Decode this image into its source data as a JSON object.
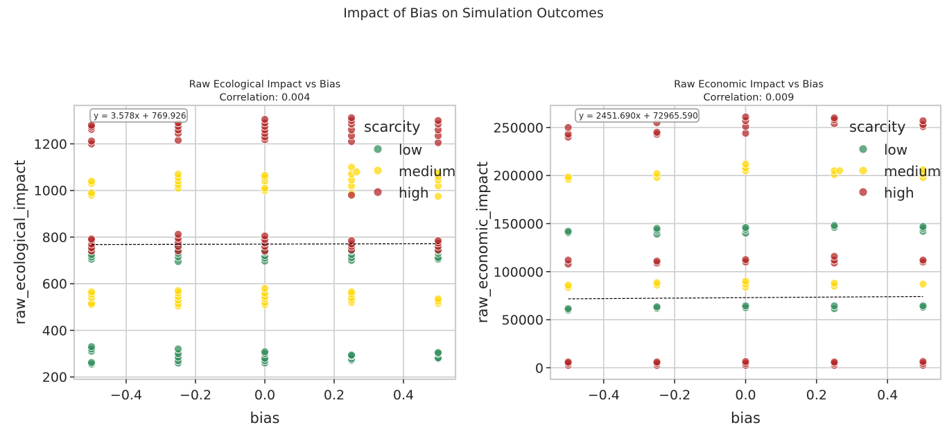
{
  "suptitle": "Impact of Bias on Simulation Outcomes",
  "colors": {
    "low": "#2e8b57",
    "medium": "#ffd700",
    "high": "#b22222",
    "grid": "#cccccc",
    "fit": "#000000"
  },
  "chart_data": [
    {
      "type": "scatter",
      "title": "Raw Ecological Impact vs Bias",
      "subtitle": "Correlation: 0.004",
      "xlabel": "bias",
      "ylabel": "raw_ecological_impact",
      "xlim": [
        -0.55,
        0.55
      ],
      "ylim": [
        190,
        1365
      ],
      "xticks": [
        -0.4,
        -0.2,
        0.0,
        0.2,
        0.4
      ],
      "xtick_labels": [
        "−0.4",
        "−0.2",
        "0.0",
        "0.2",
        "0.4"
      ],
      "yticks": [
        200,
        400,
        600,
        800,
        1000,
        1200
      ],
      "ytick_labels": [
        "200",
        "400",
        "600",
        "800",
        "1000",
        "1200"
      ],
      "grid": true,
      "legend": {
        "title": "scarcity",
        "placement": "top-right",
        "entries": [
          "low",
          "medium",
          "high"
        ]
      },
      "fit": {
        "label": "y = 3.578x + 769.926",
        "slope": 3.578,
        "intercept": 769.926,
        "x_range": [
          -0.5,
          0.5
        ]
      },
      "series": [
        {
          "name": "low",
          "points": [
            [
              -0.5,
              255
            ],
            [
              -0.5,
              262
            ],
            [
              -0.5,
              310
            ],
            [
              -0.5,
              320
            ],
            [
              -0.5,
              330
            ],
            [
              -0.5,
              705
            ],
            [
              -0.5,
              715
            ],
            [
              -0.5,
              725
            ],
            [
              -0.5,
              740
            ],
            [
              -0.5,
              750
            ],
            [
              -0.25,
              260
            ],
            [
              -0.25,
              270
            ],
            [
              -0.25,
              285
            ],
            [
              -0.25,
              300
            ],
            [
              -0.25,
              320
            ],
            [
              -0.25,
              695
            ],
            [
              -0.25,
              715
            ],
            [
              -0.25,
              730
            ],
            [
              -0.25,
              745
            ],
            [
              -0.25,
              760
            ],
            [
              0.0,
              260
            ],
            [
              0.0,
              270
            ],
            [
              0.0,
              280
            ],
            [
              0.0,
              300
            ],
            [
              0.0,
              308
            ],
            [
              0.0,
              697
            ],
            [
              0.0,
              710
            ],
            [
              0.0,
              720
            ],
            [
              0.0,
              735
            ],
            [
              0.0,
              745
            ],
            [
              0.25,
              272
            ],
            [
              0.25,
              278
            ],
            [
              0.25,
              290
            ],
            [
              0.25,
              294
            ],
            [
              0.25,
              700
            ],
            [
              0.25,
              712
            ],
            [
              0.25,
              725
            ],
            [
              0.25,
              740
            ],
            [
              0.5,
              278
            ],
            [
              0.5,
              282
            ],
            [
              0.5,
              300
            ],
            [
              0.5,
              305
            ],
            [
              0.5,
              705
            ],
            [
              0.5,
              712
            ],
            [
              0.5,
              730
            ],
            [
              0.5,
              740
            ]
          ]
        },
        {
          "name": "medium",
          "points": [
            [
              -0.5,
              510
            ],
            [
              -0.5,
              515
            ],
            [
              -0.5,
              540
            ],
            [
              -0.5,
              555
            ],
            [
              -0.5,
              565
            ],
            [
              -0.5,
              980
            ],
            [
              -0.5,
              990
            ],
            [
              -0.5,
              1030
            ],
            [
              -0.5,
              1040
            ],
            [
              -0.25,
              505
            ],
            [
              -0.25,
              515
            ],
            [
              -0.25,
              530
            ],
            [
              -0.25,
              545
            ],
            [
              -0.25,
              560
            ],
            [
              -0.25,
              570
            ],
            [
              -0.25,
              1010
            ],
            [
              -0.25,
              1025
            ],
            [
              -0.25,
              1040
            ],
            [
              -0.25,
              1055
            ],
            [
              -0.25,
              1070
            ],
            [
              0.0,
              510
            ],
            [
              0.0,
              520
            ],
            [
              0.0,
              535
            ],
            [
              0.0,
              545
            ],
            [
              0.0,
              560
            ],
            [
              0.0,
              580
            ],
            [
              0.0,
              1000
            ],
            [
              0.0,
              1010
            ],
            [
              0.0,
              1040
            ],
            [
              0.0,
              1055
            ],
            [
              0.0,
              1065
            ],
            [
              0.25,
              520
            ],
            [
              0.25,
              530
            ],
            [
              0.25,
              540
            ],
            [
              0.25,
              555
            ],
            [
              0.25,
              565
            ],
            [
              0.25,
              990
            ],
            [
              0.25,
              1020
            ],
            [
              0.25,
              1045
            ],
            [
              0.25,
              1070
            ],
            [
              0.25,
              1100
            ],
            [
              0.265,
              1080
            ],
            [
              0.5,
              515
            ],
            [
              0.5,
              525
            ],
            [
              0.5,
              535
            ],
            [
              0.5,
              975
            ],
            [
              0.5,
              1020
            ],
            [
              0.5,
              1045
            ],
            [
              0.5,
              1060
            ],
            [
              0.5,
              1075
            ]
          ]
        },
        {
          "name": "high",
          "points": [
            [
              -0.5,
              740
            ],
            [
              -0.5,
              755
            ],
            [
              -0.5,
              770
            ],
            [
              -0.5,
              785
            ],
            [
              -0.5,
              792
            ],
            [
              -0.5,
              1200
            ],
            [
              -0.5,
              1212
            ],
            [
              -0.5,
              1262
            ],
            [
              -0.5,
              1272
            ],
            [
              -0.5,
              1280
            ],
            [
              -0.25,
              740
            ],
            [
              -0.25,
              760
            ],
            [
              -0.25,
              780
            ],
            [
              -0.25,
              795
            ],
            [
              -0.25,
              812
            ],
            [
              -0.25,
              1215
            ],
            [
              -0.25,
              1245
            ],
            [
              -0.25,
              1260
            ],
            [
              -0.25,
              1275
            ],
            [
              -0.25,
              1290
            ],
            [
              0.0,
              740
            ],
            [
              0.0,
              760
            ],
            [
              0.0,
              775
            ],
            [
              0.0,
              790
            ],
            [
              0.0,
              805
            ],
            [
              0.0,
              1218
            ],
            [
              0.0,
              1230
            ],
            [
              0.0,
              1245
            ],
            [
              0.0,
              1260
            ],
            [
              0.0,
              1275
            ],
            [
              0.0,
              1290
            ],
            [
              0.0,
              1305
            ],
            [
              0.25,
              745
            ],
            [
              0.25,
              760
            ],
            [
              0.25,
              770
            ],
            [
              0.25,
              785
            ],
            [
              0.25,
              980
            ],
            [
              0.25,
              1210
            ],
            [
              0.25,
              1235
            ],
            [
              0.25,
              1260
            ],
            [
              0.25,
              1285
            ],
            [
              0.25,
              1300
            ],
            [
              0.25,
              1312
            ],
            [
              0.5,
              745
            ],
            [
              0.5,
              760
            ],
            [
              0.5,
              775
            ],
            [
              0.5,
              785
            ],
            [
              0.5,
              1205
            ],
            [
              0.5,
              1235
            ],
            [
              0.5,
              1260
            ],
            [
              0.5,
              1285
            ],
            [
              0.5,
              1300
            ]
          ]
        }
      ]
    },
    {
      "type": "scatter",
      "title": "Raw Economic Impact vs Bias",
      "subtitle": "Correlation: 0.009",
      "xlabel": "bias",
      "ylabel": "raw_economic_impact",
      "xlim": [
        -0.55,
        0.55
      ],
      "ylim": [
        -12000,
        273000
      ],
      "xticks": [
        -0.4,
        -0.2,
        0.0,
        0.2,
        0.4
      ],
      "xtick_labels": [
        "−0.4",
        "−0.2",
        "0.0",
        "0.2",
        "0.4"
      ],
      "yticks": [
        0,
        50000,
        100000,
        150000,
        200000,
        250000
      ],
      "ytick_labels": [
        "0",
        "50000",
        "100000",
        "150000",
        "200000",
        "250000"
      ],
      "grid": true,
      "legend": {
        "title": "scarcity",
        "placement": "top-right",
        "entries": [
          "low",
          "medium",
          "high"
        ]
      },
      "fit": {
        "label": "y = 2451.690x + 72965.590",
        "slope": 2451.69,
        "intercept": 72965.59,
        "x_range": [
          -0.5,
          0.5
        ]
      },
      "series": [
        {
          "name": "low",
          "points": [
            [
              -0.5,
              60000
            ],
            [
              -0.5,
              61500
            ],
            [
              -0.5,
              140500
            ],
            [
              -0.5,
              142000
            ],
            [
              -0.25,
              62000
            ],
            [
              -0.25,
              63500
            ],
            [
              -0.25,
              139000
            ],
            [
              -0.25,
              143000
            ],
            [
              -0.25,
              145000
            ],
            [
              0.0,
              62500
            ],
            [
              0.0,
              64500
            ],
            [
              0.0,
              140000
            ],
            [
              0.0,
              144000
            ],
            [
              0.0,
              146000
            ],
            [
              0.25,
              61500
            ],
            [
              0.25,
              64500
            ],
            [
              0.25,
              146000
            ],
            [
              0.25,
              148000
            ],
            [
              0.5,
              63000
            ],
            [
              0.5,
              64500
            ],
            [
              0.5,
              142000
            ],
            [
              0.5,
              145000
            ],
            [
              0.5,
              147000
            ]
          ]
        },
        {
          "name": "medium",
          "points": [
            [
              -0.5,
              83500
            ],
            [
              -0.5,
              86000
            ],
            [
              -0.5,
              196000
            ],
            [
              -0.5,
              198500
            ],
            [
              -0.25,
              86000
            ],
            [
              -0.25,
              88500
            ],
            [
              -0.25,
              198000
            ],
            [
              -0.25,
              202000
            ],
            [
              0.0,
              84000
            ],
            [
              0.0,
              87000
            ],
            [
              0.0,
              90000
            ],
            [
              0.0,
              205000
            ],
            [
              0.0,
              208000
            ],
            [
              0.0,
              212000
            ],
            [
              0.25,
              85000
            ],
            [
              0.25,
              88000
            ],
            [
              0.25,
              201000
            ],
            [
              0.25,
              205000
            ],
            [
              0.265,
              205000
            ],
            [
              0.5,
              87000
            ],
            [
              0.5,
              198000
            ],
            [
              0.5,
              202000
            ],
            [
              0.5,
              206000
            ]
          ]
        },
        {
          "name": "high",
          "points": [
            [
              -0.5,
              2500
            ],
            [
              -0.5,
              4500
            ],
            [
              -0.5,
              6000
            ],
            [
              -0.5,
              108000
            ],
            [
              -0.5,
              112000
            ],
            [
              -0.5,
              240000
            ],
            [
              -0.5,
              243000
            ],
            [
              -0.5,
              250000
            ],
            [
              -0.25,
              2500
            ],
            [
              -0.25,
              4500
            ],
            [
              -0.25,
              6000
            ],
            [
              -0.25,
              109000
            ],
            [
              -0.25,
              111000
            ],
            [
              -0.25,
              243000
            ],
            [
              -0.25,
              245000
            ],
            [
              -0.25,
              255000
            ],
            [
              0.0,
              2500
            ],
            [
              0.0,
              4500
            ],
            [
              0.0,
              6500
            ],
            [
              0.0,
              110000
            ],
            [
              0.0,
              112500
            ],
            [
              0.0,
              244000
            ],
            [
              0.0,
              251000
            ],
            [
              0.0,
              257000
            ],
            [
              0.0,
              261000
            ],
            [
              0.25,
              2500
            ],
            [
              0.25,
              4500
            ],
            [
              0.25,
              6000
            ],
            [
              0.25,
              109000
            ],
            [
              0.25,
              112000
            ],
            [
              0.25,
              116000
            ],
            [
              0.25,
              254000
            ],
            [
              0.25,
              258000
            ],
            [
              0.25,
              260000
            ],
            [
              0.5,
              2500
            ],
            [
              0.5,
              4500
            ],
            [
              0.5,
              6500
            ],
            [
              0.5,
              110000
            ],
            [
              0.5,
              112000
            ],
            [
              0.5,
              251000
            ],
            [
              0.5,
              253000
            ],
            [
              0.5,
              257000
            ]
          ]
        }
      ]
    }
  ]
}
